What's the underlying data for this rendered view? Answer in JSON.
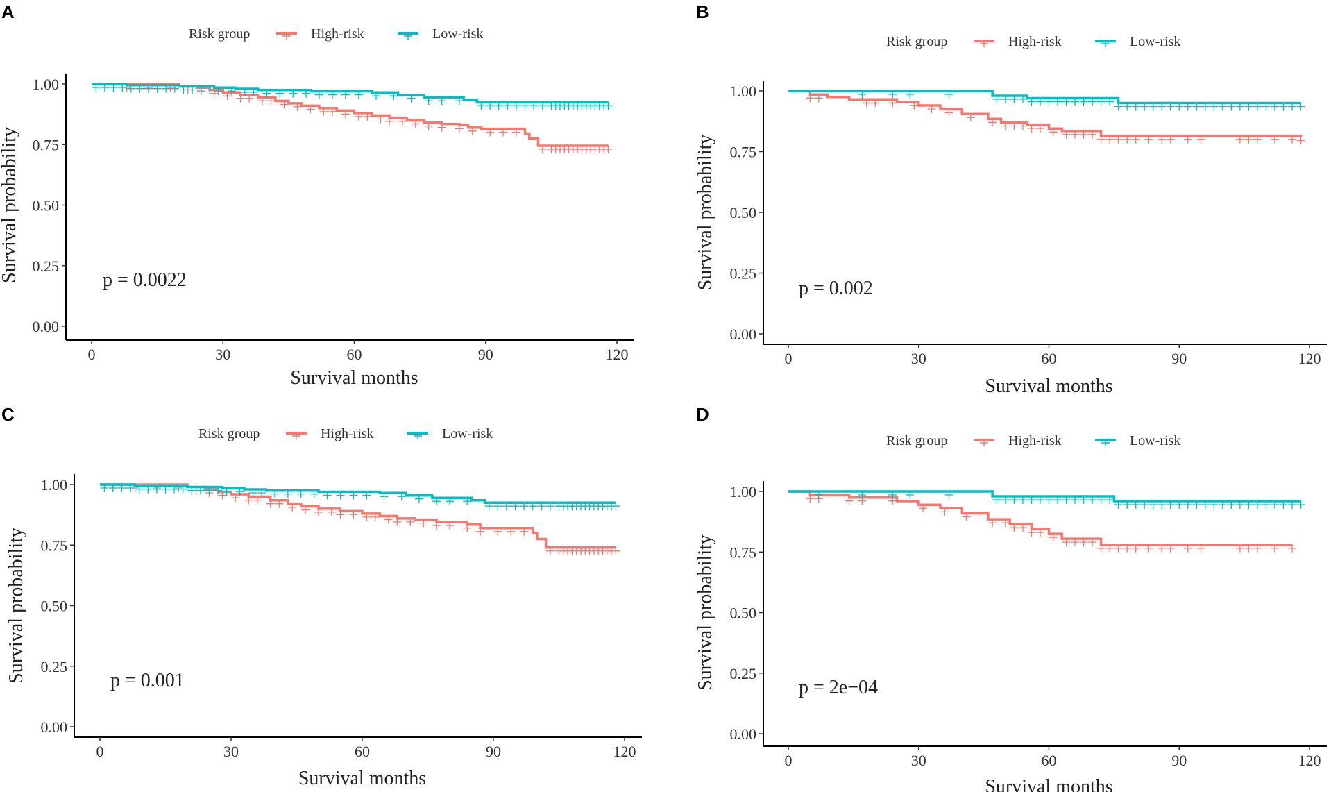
{
  "chart_data": [
    {
      "panel": "A",
      "type": "line",
      "title": "",
      "xlabel": "Survival months",
      "ylabel": "Survival probability",
      "xlim": [
        0,
        120
      ],
      "ylim": [
        0,
        1
      ],
      "x_ticks": [
        "0",
        "30",
        "60",
        "90",
        "120"
      ],
      "y_ticks": [
        "0.00",
        "0.25",
        "0.50",
        "0.75",
        "1.00"
      ],
      "legend": {
        "title": "Risk group",
        "position": "top",
        "entries": [
          "High-risk",
          "Low-risk"
        ]
      },
      "annotation": "p = 0.0022",
      "series": [
        {
          "name": "High-risk",
          "color": "#F8766D",
          "steps": [
            [
              0,
              1.0
            ],
            [
              20,
              0.99
            ],
            [
              24,
              0.985
            ],
            [
              27,
              0.975
            ],
            [
              30,
              0.965
            ],
            [
              34,
              0.955
            ],
            [
              38,
              0.945
            ],
            [
              42,
              0.93
            ],
            [
              45,
              0.92
            ],
            [
              48,
              0.91
            ],
            [
              52,
              0.9
            ],
            [
              56,
              0.89
            ],
            [
              60,
              0.88
            ],
            [
              64,
              0.87
            ],
            [
              68,
              0.86
            ],
            [
              72,
              0.85
            ],
            [
              76,
              0.84
            ],
            [
              80,
              0.835
            ],
            [
              84,
              0.83
            ],
            [
              86,
              0.82
            ],
            [
              89,
              0.815
            ],
            [
              99,
              0.795
            ],
            [
              100,
              0.775
            ],
            [
              102,
              0.745
            ],
            [
              118,
              0.745
            ]
          ],
          "censor": [
            3,
            8,
            13,
            18,
            22,
            25,
            28,
            31,
            34,
            36,
            39,
            41,
            44,
            47,
            50,
            53,
            55,
            58,
            61,
            63,
            66,
            68,
            71,
            74,
            77,
            80,
            84,
            87,
            91,
            94,
            97,
            103,
            105,
            106,
            107,
            108,
            109,
            110,
            111,
            112,
            113,
            114,
            115,
            116,
            117,
            118
          ]
        },
        {
          "name": "Low-risk",
          "color": "#00BFC4",
          "steps": [
            [
              0,
              1.0
            ],
            [
              8,
              0.995
            ],
            [
              20,
              0.99
            ],
            [
              28,
              0.985
            ],
            [
              33,
              0.98
            ],
            [
              38,
              0.975
            ],
            [
              50,
              0.97
            ],
            [
              64,
              0.965
            ],
            [
              70,
              0.955
            ],
            [
              76,
              0.945
            ],
            [
              85,
              0.935
            ],
            [
              88,
              0.925
            ],
            [
              118,
              0.925
            ]
          ],
          "censor": [
            1,
            3,
            5,
            7,
            9,
            11,
            13,
            15,
            17,
            19,
            21,
            23,
            25,
            27,
            29,
            32,
            35,
            37,
            40,
            43,
            46,
            49,
            52,
            55,
            58,
            61,
            65,
            69,
            73,
            77,
            80,
            84,
            89,
            91,
            93,
            95,
            97,
            99,
            101,
            103,
            105,
            106,
            107,
            108,
            109,
            110,
            111,
            112,
            113,
            114,
            115,
            116,
            117,
            118
          ]
        }
      ]
    },
    {
      "panel": "B",
      "type": "line",
      "title": "",
      "xlabel": "Survival months",
      "ylabel": "Survival probability",
      "xlim": [
        0,
        120
      ],
      "ylim": [
        0,
        1
      ],
      "x_ticks": [
        "0",
        "30",
        "60",
        "90",
        "120"
      ],
      "y_ticks": [
        "0.00",
        "0.25",
        "0.50",
        "0.75",
        "1.00"
      ],
      "legend": {
        "title": "Risk group",
        "position": "top",
        "entries": [
          "High-risk",
          "Low-risk"
        ]
      },
      "annotation": "p = 0.002",
      "series": [
        {
          "name": "High-risk",
          "color": "#F8766D",
          "steps": [
            [
              0,
              1.0
            ],
            [
              5,
              0.985
            ],
            [
              9,
              0.975
            ],
            [
              14,
              0.965
            ],
            [
              25,
              0.955
            ],
            [
              30,
              0.94
            ],
            [
              35,
              0.925
            ],
            [
              40,
              0.905
            ],
            [
              46,
              0.885
            ],
            [
              49,
              0.87
            ],
            [
              55,
              0.86
            ],
            [
              60,
              0.845
            ],
            [
              63,
              0.835
            ],
            [
              72,
              0.815
            ],
            [
              118,
              0.81
            ]
          ],
          "censor": [
            5,
            7,
            18,
            20,
            24,
            29,
            33,
            37,
            42,
            47,
            50,
            52,
            54,
            56,
            58,
            61,
            64,
            66,
            68,
            70,
            72,
            74,
            76,
            78,
            80,
            83,
            86,
            88,
            92,
            95,
            104,
            106,
            108,
            112,
            116,
            118
          ]
        },
        {
          "name": "Low-risk",
          "color": "#00BFC4",
          "steps": [
            [
              0,
              1.0
            ],
            [
              47,
              0.98
            ],
            [
              55,
              0.97
            ],
            [
              76,
              0.95
            ],
            [
              118,
              0.95
            ]
          ],
          "censor": [
            17,
            24,
            28,
            37,
            48,
            50,
            52,
            54,
            56,
            58,
            60,
            62,
            64,
            66,
            68,
            70,
            72,
            74,
            76,
            78,
            80,
            82,
            84,
            86,
            88,
            90,
            92,
            94,
            96,
            98,
            100,
            102,
            104,
            106,
            108,
            110,
            112,
            114,
            116,
            118
          ]
        }
      ]
    },
    {
      "panel": "C",
      "type": "line",
      "title": "",
      "xlabel": "Survival months",
      "ylabel": "Survival probability",
      "xlim": [
        0,
        120
      ],
      "ylim": [
        0,
        1
      ],
      "x_ticks": [
        "0",
        "30",
        "60",
        "90",
        "120"
      ],
      "y_ticks": [
        "0.00",
        "0.25",
        "0.50",
        "0.75",
        "1.00"
      ],
      "legend": {
        "title": "Risk group",
        "position": "top",
        "entries": [
          "High-risk",
          "Low-risk"
        ]
      },
      "annotation": "p = 0.001",
      "series": [
        {
          "name": "High-risk",
          "color": "#F8766D",
          "steps": [
            [
              0,
              1.0
            ],
            [
              20,
              0.99
            ],
            [
              24,
              0.98
            ],
            [
              27,
              0.97
            ],
            [
              30,
              0.96
            ],
            [
              34,
              0.95
            ],
            [
              39,
              0.935
            ],
            [
              43,
              0.92
            ],
            [
              46,
              0.91
            ],
            [
              50,
              0.9
            ],
            [
              55,
              0.89
            ],
            [
              60,
              0.88
            ],
            [
              64,
              0.87
            ],
            [
              68,
              0.86
            ],
            [
              72,
              0.855
            ],
            [
              77,
              0.845
            ],
            [
              84,
              0.835
            ],
            [
              87,
              0.82
            ],
            [
              99,
              0.8
            ],
            [
              100,
              0.775
            ],
            [
              102,
              0.74
            ],
            [
              118,
              0.74
            ]
          ],
          "censor": [
            3,
            8,
            13,
            18,
            22,
            25,
            28,
            31,
            34,
            36,
            39,
            41,
            44,
            47,
            50,
            53,
            55,
            58,
            61,
            63,
            66,
            68,
            71,
            74,
            77,
            80,
            84,
            87,
            91,
            94,
            97,
            103,
            105,
            106,
            107,
            108,
            109,
            110,
            111,
            112,
            113,
            114,
            115,
            116,
            117,
            118
          ]
        },
        {
          "name": "Low-risk",
          "color": "#00BFC4",
          "steps": [
            [
              0,
              1.0
            ],
            [
              8,
              0.995
            ],
            [
              20,
              0.99
            ],
            [
              28,
              0.985
            ],
            [
              33,
              0.98
            ],
            [
              38,
              0.975
            ],
            [
              50,
              0.97
            ],
            [
              64,
              0.965
            ],
            [
              70,
              0.955
            ],
            [
              76,
              0.945
            ],
            [
              85,
              0.935
            ],
            [
              88,
              0.925
            ],
            [
              118,
              0.925
            ]
          ],
          "censor": [
            1,
            3,
            5,
            7,
            9,
            11,
            13,
            15,
            17,
            19,
            21,
            23,
            25,
            27,
            29,
            32,
            35,
            37,
            40,
            43,
            46,
            49,
            52,
            55,
            58,
            61,
            65,
            69,
            73,
            77,
            80,
            84,
            89,
            91,
            93,
            95,
            97,
            99,
            101,
            103,
            105,
            106,
            107,
            108,
            109,
            110,
            111,
            112,
            113,
            114,
            115,
            116,
            117,
            118
          ]
        }
      ]
    },
    {
      "panel": "D",
      "type": "line",
      "title": "",
      "xlabel": "Survival months",
      "ylabel": "Survival probability",
      "xlim": [
        0,
        120
      ],
      "ylim": [
        0,
        1
      ],
      "x_ticks": [
        "0",
        "30",
        "60",
        "90",
        "120"
      ],
      "y_ticks": [
        "0.00",
        "0.25",
        "0.50",
        "0.75",
        "1.00"
      ],
      "legend": {
        "title": "Risk group",
        "position": "top",
        "entries": [
          "High-risk",
          "Low-risk"
        ]
      },
      "annotation": "p = 2e−04",
      "series": [
        {
          "name": "High-risk",
          "color": "#F8766D",
          "steps": [
            [
              0,
              1.0
            ],
            [
              5,
              0.985
            ],
            [
              14,
              0.975
            ],
            [
              25,
              0.96
            ],
            [
              30,
              0.945
            ],
            [
              35,
              0.93
            ],
            [
              40,
              0.91
            ],
            [
              46,
              0.885
            ],
            [
              51,
              0.865
            ],
            [
              56,
              0.845
            ],
            [
              60,
              0.825
            ],
            [
              63,
              0.805
            ],
            [
              72,
              0.78
            ],
            [
              116,
              0.78
            ]
          ],
          "censor": [
            5,
            7,
            14,
            17,
            24,
            31,
            36,
            41,
            47,
            50,
            52,
            54,
            56,
            58,
            61,
            64,
            66,
            68,
            70,
            72,
            74,
            76,
            78,
            80,
            83,
            86,
            88,
            92,
            95,
            104,
            106,
            108,
            112,
            116
          ]
        },
        {
          "name": "Low-risk",
          "color": "#00BFC4",
          "steps": [
            [
              0,
              1.0
            ],
            [
              47,
              0.98
            ],
            [
              75,
              0.96
            ],
            [
              118,
              0.96
            ]
          ],
          "censor": [
            7,
            17,
            24,
            28,
            37,
            48,
            50,
            52,
            54,
            56,
            58,
            60,
            62,
            64,
            66,
            68,
            70,
            72,
            74,
            76,
            78,
            80,
            82,
            84,
            86,
            88,
            90,
            92,
            94,
            96,
            98,
            100,
            102,
            104,
            106,
            108,
            110,
            112,
            114,
            116,
            118
          ]
        }
      ]
    }
  ]
}
